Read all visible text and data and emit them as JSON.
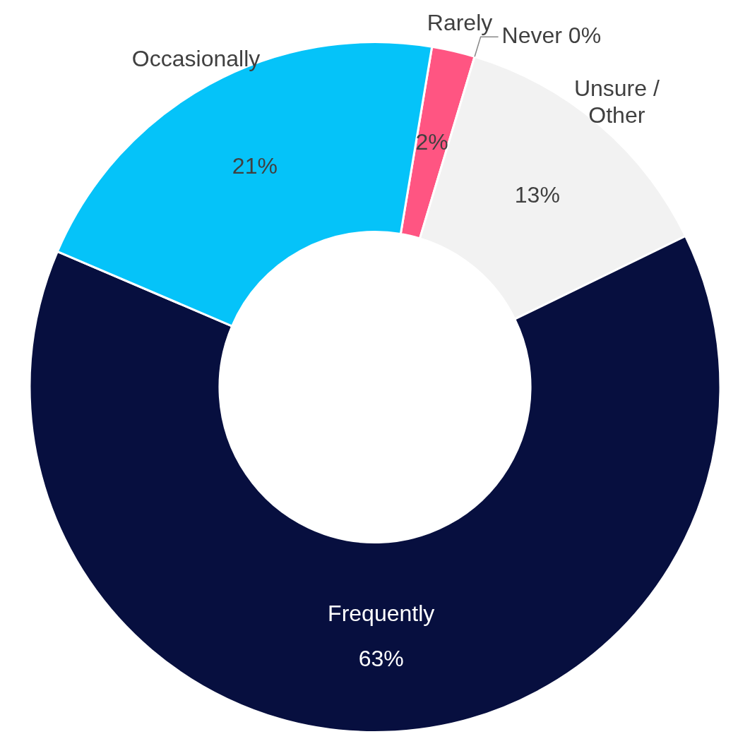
{
  "chart_data": {
    "type": "donut",
    "categories": [
      "Rarely",
      "Never",
      "Unsure / Other",
      "Frequently",
      "Occasionally"
    ],
    "values": [
      2,
      0,
      13,
      63,
      21
    ],
    "value_labels": [
      "2%",
      "0%",
      "13%",
      "63%",
      "21%"
    ],
    "colors": [
      "#ff5582",
      "#ff5582",
      "#f2f2f2",
      "#070f3f",
      "#05c3f9"
    ]
  }
}
